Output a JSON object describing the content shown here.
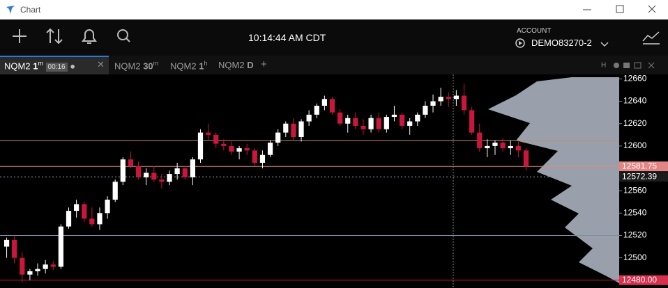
{
  "window_title": "Chart",
  "clock": "10:14:44 AM CDT",
  "account": {
    "label": "ACCOUNT",
    "name": "DEMO83270-2"
  },
  "tabs": [
    {
      "symbol": "NQM2",
      "period": "1",
      "unit": "m",
      "timer": "00:16"
    },
    {
      "symbol": "NQM2",
      "period": "30",
      "unit": "m"
    },
    {
      "symbol": "NQM2",
      "period": "1",
      "unit": "h"
    },
    {
      "symbol": "NQM2",
      "period": "D"
    }
  ],
  "chart_data": {
    "type": "candlestick",
    "up_color": "#ffffff",
    "down_color": "#c8163c",
    "open": [
      12510,
      12516,
      12500,
      12485,
      12488,
      12490,
      12494,
      12492,
      12528,
      12542,
      12548,
      12535,
      12530,
      12540,
      12552,
      12568,
      12588,
      12582,
      12572,
      12576,
      12570,
      12568,
      12575,
      12580,
      12572,
      12588,
      12612,
      12610,
      12602,
      12600,
      12595,
      12598,
      12596,
      12585,
      12592,
      12603,
      12612,
      12620,
      12608,
      12622,
      12628,
      12636,
      12642,
      12630,
      12620,
      12625,
      12618,
      12615,
      12625,
      12615,
      12626,
      12628,
      12618,
      12622,
      12628,
      12636,
      12640,
      12644,
      12642,
      12645,
      12632,
      12612,
      12598,
      12600,
      12603,
      12598,
      12600,
      12596
    ],
    "high": [
      12518,
      12520,
      12505,
      12490,
      12495,
      12498,
      12497,
      12530,
      12545,
      12552,
      12550,
      12545,
      12545,
      12555,
      12570,
      12590,
      12595,
      12586,
      12580,
      12582,
      12575,
      12578,
      12585,
      12582,
      12590,
      12615,
      12620,
      12612,
      12606,
      12604,
      12600,
      12602,
      12598,
      12596,
      12605,
      12615,
      12622,
      12625,
      12624,
      12632,
      12638,
      12645,
      12644,
      12633,
      12628,
      12630,
      12624,
      12628,
      12630,
      12628,
      12636,
      12630,
      12625,
      12630,
      12640,
      12646,
      12652,
      12648,
      12650,
      12656,
      12635,
      12620,
      12606,
      12605,
      12607,
      12605,
      12604,
      12598
    ],
    "low": [
      12500,
      12495,
      12478,
      12480,
      12484,
      12486,
      12489,
      12490,
      12526,
      12536,
      12532,
      12528,
      12525,
      12535,
      12550,
      12565,
      12580,
      12570,
      12565,
      12568,
      12562,
      12565,
      12570,
      12570,
      12565,
      12585,
      12605,
      12598,
      12596,
      12592,
      12588,
      12592,
      12582,
      12580,
      12590,
      12600,
      12608,
      12605,
      12604,
      12618,
      12625,
      12632,
      12628,
      12618,
      12612,
      12615,
      12610,
      12612,
      12612,
      12612,
      12622,
      12615,
      12610,
      12618,
      12625,
      12630,
      12636,
      12635,
      12636,
      12628,
      12610,
      12595,
      12590,
      12592,
      12595,
      12592,
      12590,
      12578
    ],
    "close": [
      12516,
      12500,
      12485,
      12488,
      12490,
      12494,
      12492,
      12528,
      12542,
      12548,
      12535,
      12530,
      12540,
      12552,
      12568,
      12588,
      12582,
      12572,
      12576,
      12570,
      12568,
      12575,
      12580,
      12572,
      12588,
      12612,
      12610,
      12602,
      12600,
      12595,
      12598,
      12596,
      12585,
      12592,
      12603,
      12612,
      12620,
      12608,
      12622,
      12628,
      12636,
      12642,
      12630,
      12620,
      12625,
      12618,
      12615,
      12625,
      12615,
      12626,
      12628,
      12618,
      12622,
      12628,
      12636,
      12640,
      12644,
      12642,
      12645,
      12632,
      12612,
      12598,
      12600,
      12603,
      12598,
      12600,
      12596,
      12581.75
    ],
    "ylim": [
      12473,
      12664
    ],
    "yticks": [
      12660,
      12640,
      12620,
      12600,
      12580,
      12560,
      12540,
      12520,
      12500,
      12480
    ],
    "price_lines": [
      {
        "value": 12605,
        "color": "#c98a6a",
        "style": "solid"
      },
      {
        "value": 12581.75,
        "color": "#e48585",
        "style": "solid",
        "bg": "#e48585",
        "fg": "#ffffff"
      },
      {
        "value": 12572.39,
        "color": "#9aa3ad",
        "style": "dotted",
        "bg": "#1b1b1b",
        "fg": "#ffffff"
      },
      {
        "value": 12520,
        "color": "#7f8fa6",
        "style": "solid"
      },
      {
        "value": 12480,
        "label": "12480.00",
        "color": "#c8163c",
        "style": "solid",
        "bg": "#d9304f",
        "fg": "#ffffff"
      }
    ]
  }
}
